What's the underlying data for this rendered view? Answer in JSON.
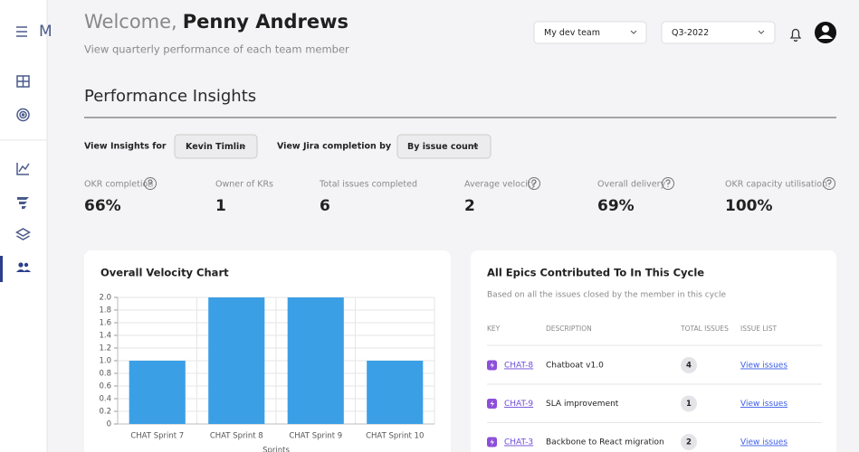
{
  "sidebar": {
    "logo": "M"
  },
  "header": {
    "greeting": "Welcome,",
    "name": "Penny Andrews",
    "subtitle": "View quarterly performance of each team member",
    "team_select": "My dev team",
    "quarter_select": "Q3-2022"
  },
  "section": {
    "title": "Performance Insights"
  },
  "filters": {
    "insights_label": "View Insights for",
    "insights_value": "Kevin Timlin",
    "completion_label": "View Jira completion by",
    "completion_value": "By issue count"
  },
  "metrics": [
    {
      "label": "OKR completion",
      "value": "66%"
    },
    {
      "label": "Owner of KRs",
      "value": "1"
    },
    {
      "label": "Total issues completed",
      "value": "6"
    },
    {
      "label": "Average velocity",
      "value": "2"
    },
    {
      "label": "Overall delivery",
      "value": "69%"
    },
    {
      "label": "OKR capacity utilisation",
      "value": "100%"
    }
  ],
  "chart_data": {
    "type": "bar",
    "title": "Overall Velocity Chart",
    "x_label": "Sprints",
    "categories": [
      "CHAT Sprint 7",
      "CHAT Sprint 8",
      "CHAT Sprint 9",
      "CHAT Sprint 10"
    ],
    "values": [
      1,
      2,
      2,
      1
    ],
    "color": "#3b9fe6",
    "ylim": [
      0,
      2
    ],
    "yticks": [
      0,
      0.2,
      0.4,
      0.6,
      0.8,
      {
        "value": 1,
        "label": "1.0"
      },
      1.2,
      1.4,
      1.6,
      1.8,
      {
        "value": 2,
        "label": "2.0"
      }
    ],
    "grid": true
  },
  "epics": {
    "title": "All Epics Contributed To In This Cycle",
    "subtitle": "Based on all the issues closed by the member in this cycle",
    "columns": [
      "KEY",
      "DESCRIPTION",
      "TOTAL ISSUES",
      "ISSUE LIST"
    ],
    "rows": [
      {
        "key": "CHAT-8",
        "description": "Chatboat v1.0",
        "total": "4",
        "link": "View issues"
      },
      {
        "key": "CHAT-9",
        "description": "SLA improvement",
        "total": "1",
        "link": "View issues"
      },
      {
        "key": "CHAT-3",
        "description": "Backbone to React migration",
        "total": "2",
        "link": "View issues"
      }
    ]
  }
}
